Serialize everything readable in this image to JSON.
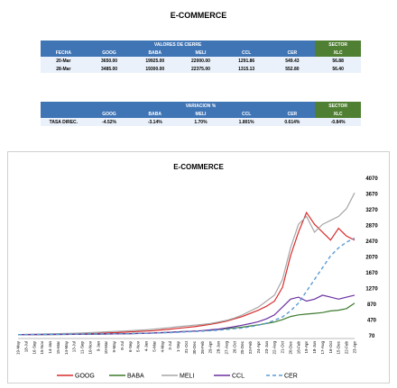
{
  "header": {
    "title": "E-COMMERCE"
  },
  "prices_table": {
    "group": "VALORES DE CIERRE",
    "sector": "SECTOR",
    "columns": [
      "FECHA",
      "GOOG",
      "BABA",
      "MELI",
      "CCL",
      "CER",
      "XLC"
    ],
    "rows": [
      [
        "20-Mar",
        "3650.00",
        "19925.00",
        "22000.00",
        "1291.86",
        "549.43",
        "56.88"
      ],
      [
        "28-Mar",
        "3485.00",
        "19300.00",
        "22375.00",
        "1315.13",
        "552.80",
        "56.40"
      ]
    ]
  },
  "change_table": {
    "group": "VARIACION %",
    "sector": "SECTOR",
    "columns": [
      "GOOG",
      "BABA",
      "MELI",
      "CCL",
      "CER",
      "XLC"
    ],
    "rows": [
      [
        "TASA DIREC.",
        "-4.52%",
        "-3.14%",
        "1.70%",
        "1.801%",
        "0.614%",
        "-0.84%"
      ]
    ]
  },
  "chart_data": {
    "type": "line",
    "title": "E-COMMERCE",
    "categories": [
      "19-May",
      "18-Jul",
      "16-Sep",
      "15-Nov",
      "14-Jan",
      "15-Mar",
      "14-May",
      "13-Jul",
      "11-Sep",
      "10-Nov",
      "9-Jan",
      "10-Mar",
      "9-May",
      "8-Jul",
      "6-Sep",
      "5-Nov",
      "4-Jan",
      "5-Mar",
      "4-May",
      "3-Jul",
      "1-Sep",
      "31-Oct",
      "30-Dec",
      "28-Feb",
      "29-Apr",
      "28-Jun",
      "27-Aug",
      "26-Oct",
      "25-Dec",
      "23-Feb",
      "24-Apr",
      "23-Jun",
      "22-Aug",
      "21-Oct",
      "20-Dec",
      "18-Feb",
      "19-Apr",
      "18-Jun",
      "17-Aug",
      "16-Oct",
      "15-Dec",
      "22-Feb",
      "23-Apr"
    ],
    "series": [
      {
        "name": "GOOG",
        "color": "#d92b2b",
        "dashed": false,
        "values": [
          100,
          102,
          104,
          106,
          108,
          110,
          115,
          120,
          125,
          130,
          135,
          140,
          150,
          160,
          170,
          180,
          190,
          200,
          220,
          240,
          260,
          280,
          300,
          330,
          360,
          400,
          440,
          500,
          560,
          640,
          720,
          820,
          950,
          1300,
          2100,
          2700,
          3200,
          2900,
          2700,
          2500,
          2800,
          2600,
          2500
        ]
      },
      {
        "name": "BABA",
        "color": "#3c7a2c",
        "dashed": false,
        "values": [
          100,
          100,
          101,
          102,
          103,
          104,
          105,
          106,
          108,
          110,
          112,
          115,
          118,
          120,
          125,
          130,
          135,
          140,
          150,
          160,
          170,
          180,
          190,
          200,
          210,
          230,
          250,
          270,
          290,
          320,
          350,
          380,
          420,
          480,
          560,
          600,
          620,
          640,
          660,
          700,
          720,
          760,
          900
        ]
      },
      {
        "name": "MELI",
        "color": "#a6a6a6",
        "dashed": false,
        "values": [
          100,
          105,
          110,
          115,
          120,
          125,
          130,
          135,
          140,
          150,
          160,
          170,
          180,
          190,
          200,
          210,
          220,
          240,
          260,
          280,
          300,
          320,
          340,
          360,
          380,
          420,
          460,
          520,
          600,
          700,
          800,
          950,
          1100,
          1500,
          2300,
          2900,
          3100,
          2700,
          2900,
          3000,
          3100,
          3300,
          3700
        ]
      },
      {
        "name": "CCL",
        "color": "#6a2fa0",
        "dashed": false,
        "values": [
          100,
          101,
          102,
          103,
          104,
          105,
          106,
          108,
          110,
          112,
          114,
          116,
          118,
          120,
          125,
          130,
          135,
          140,
          150,
          160,
          170,
          180,
          190,
          200,
          220,
          240,
          270,
          300,
          340,
          380,
          430,
          500,
          600,
          800,
          1000,
          1050,
          950,
          1000,
          1100,
          1050,
          1000,
          1050,
          1100
        ]
      },
      {
        "name": "CER",
        "color": "#5b9bd5",
        "dashed": true,
        "values": [
          100,
          102,
          104,
          106,
          108,
          110,
          112,
          114,
          116,
          118,
          120,
          122,
          124,
          126,
          128,
          130,
          135,
          140,
          145,
          150,
          160,
          170,
          180,
          190,
          200,
          215,
          230,
          250,
          270,
          300,
          340,
          390,
          460,
          550,
          700,
          900,
          1200,
          1500,
          1800,
          2100,
          2300,
          2450,
          2550
        ]
      }
    ],
    "ylim": [
      70,
      4070
    ],
    "yticks": [
      70,
      470,
      870,
      1270,
      1670,
      2070,
      2470,
      2870,
      3270,
      3670,
      4070
    ],
    "grid": false,
    "legend": "bottom"
  }
}
